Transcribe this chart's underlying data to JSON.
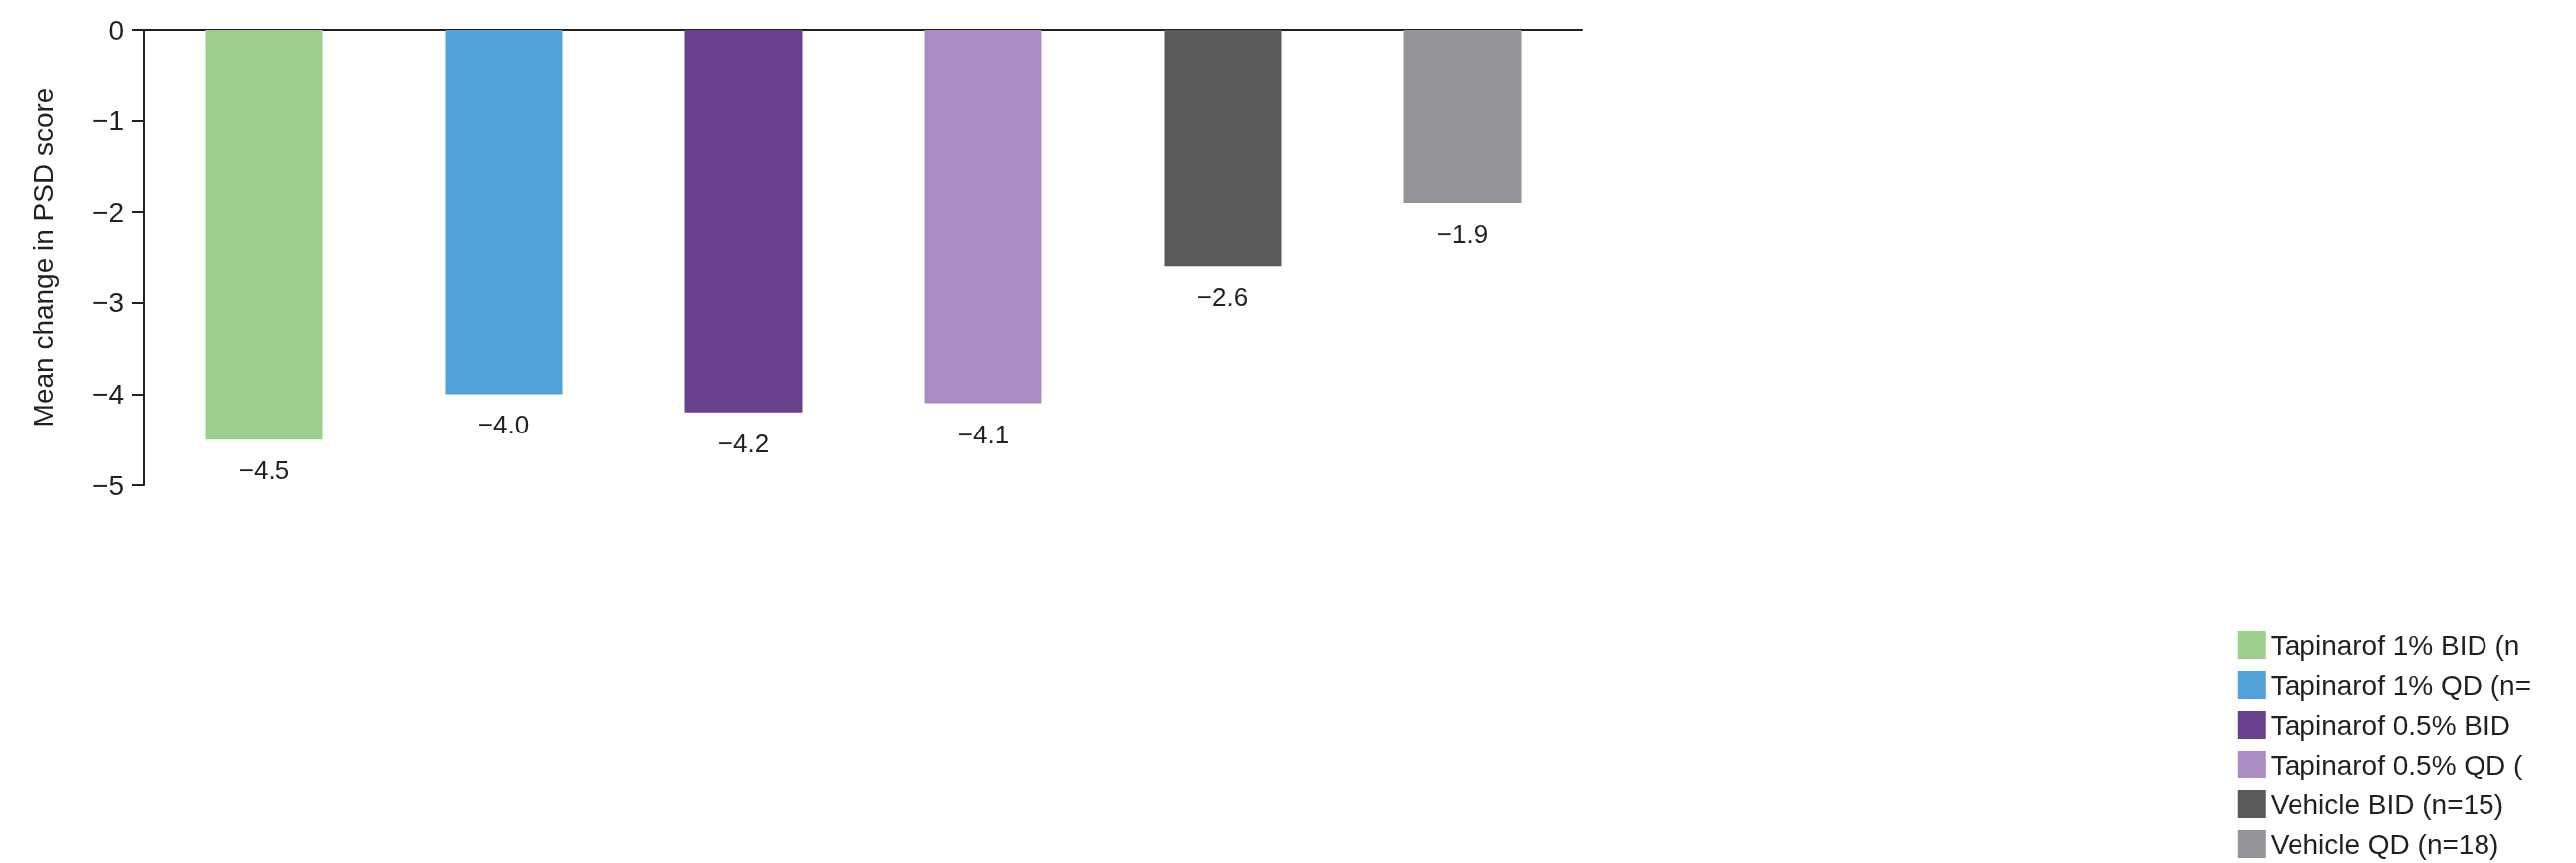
{
  "chart_data": {
    "type": "bar",
    "ylabel": "Mean change in PSD score",
    "categories": [
      null,
      null,
      null,
      null,
      null,
      null
    ],
    "stacked": true,
    "ylim": [
      -5,
      0
    ],
    "yticks": [
      {
        "value": 0,
        "label": "0"
      },
      {
        "value": -1,
        "label": "−1"
      },
      {
        "value": -2,
        "label": "−2"
      },
      {
        "value": -3,
        "label": "−3"
      },
      {
        "value": -4,
        "label": "−4"
      },
      {
        "value": -5,
        "label": "−5"
      }
    ],
    "grid": false,
    "legend": "bottom right",
    "series": [
      {
        "name": "Tapinarof 1% BID (n",
        "color": "#9dd08f",
        "values": [
          -4.5,
          null,
          null,
          null,
          null,
          null
        ],
        "value_labels": [
          "−4.5",
          null,
          null,
          null,
          null,
          null
        ]
      },
      {
        "name": "Tapinarof 1% QD (n=",
        "color": "#52a1d9",
        "values": [
          null,
          -4.0,
          null,
          null,
          null,
          null
        ],
        "value_labels": [
          null,
          "−4.0",
          null,
          null,
          null,
          null
        ]
      },
      {
        "name": "Tapinarof 0.5% BID",
        "color": "#68418d",
        "values": [
          null,
          null,
          -4.2,
          null,
          null,
          null
        ],
        "value_labels": [
          null,
          null,
          "−4.2",
          null,
          null,
          null
        ]
      },
      {
        "name": "Tapinarof 0.5% QD (",
        "color": "#ab8bc1",
        "values": [
          null,
          null,
          null,
          -4.1,
          null,
          null
        ],
        "value_labels": [
          null,
          null,
          null,
          "−4.1",
          null,
          null
        ]
      },
      {
        "name": "Vehicle BID (n=15)",
        "color": "#58595b",
        "values": [
          null,
          null,
          null,
          null,
          -2.6,
          null
        ],
        "value_labels": [
          null,
          null,
          null,
          null,
          "−2.6",
          null
        ]
      },
      {
        "name": "Vehicle QD (n=18)",
        "color": "#939598",
        "values": [
          null,
          null,
          null,
          null,
          null,
          -1.9
        ],
        "value_labels": [
          null,
          null,
          null,
          null,
          null,
          "−1.9"
        ]
      }
    ]
  }
}
